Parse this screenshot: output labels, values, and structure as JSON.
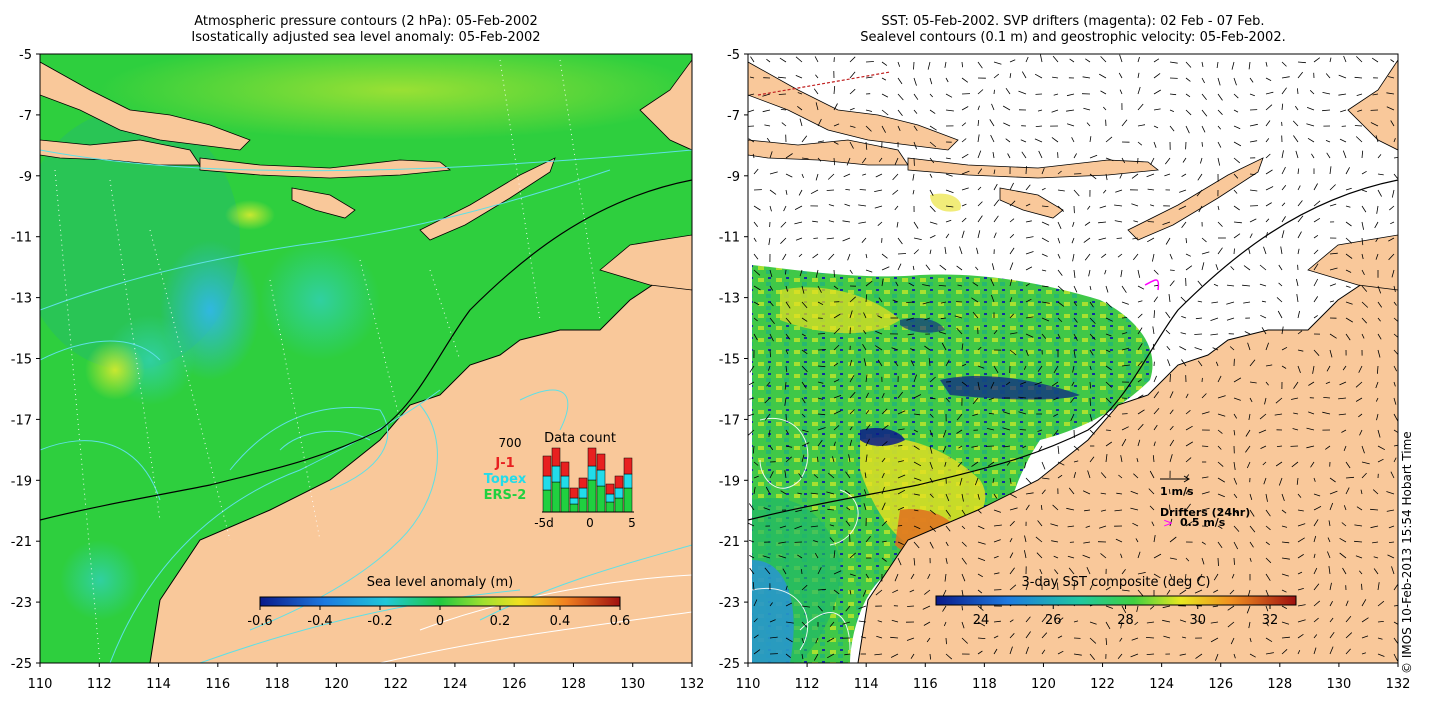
{
  "left_panel": {
    "title_line1": "Atmospheric pressure contours (2 hPa): 05-Feb-2002",
    "title_line2": "Isostatically adjusted sea level anomaly: 05-Feb-2002",
    "colorbar_label": "Sea level anomaly (m)",
    "colorbar_ticks": [
      "-0.6",
      "-0.4",
      "-0.2",
      "0",
      "0.2",
      "0.4",
      "0.6"
    ],
    "data_count": {
      "title": "Data count",
      "max_label": "700",
      "legend": [
        {
          "name": "J-1",
          "color": "#e82020"
        },
        {
          "name": "Topex",
          "color": "#22dcea"
        },
        {
          "name": "ERS-2",
          "color": "#20d040"
        }
      ],
      "x_ticks": [
        "-5d",
        "0",
        "5"
      ]
    }
  },
  "right_panel": {
    "title_line1": "SST: 05-Feb-2002. SVP drifters (magenta): 02 Feb - 07 Feb.",
    "title_line2": "Sealevel contours (0.1 m) and geostrophic velocity: 05-Feb-2002.",
    "colorbar_label": "3-day SST composite (deg C)",
    "colorbar_ticks": [
      "24",
      "26",
      "28",
      "30",
      "32"
    ],
    "velocity_scale": "1 m/s",
    "drifters_label": "Drifters (24hr)",
    "drifters_scale": "0.5 m/s"
  },
  "axes": {
    "lon_ticks": [
      "110",
      "112",
      "114",
      "116",
      "118",
      "120",
      "122",
      "124",
      "126",
      "128",
      "130",
      "132"
    ],
    "lat_ticks": [
      "-5",
      "-7",
      "-9",
      "-11",
      "-13",
      "-15",
      "-17",
      "-19",
      "-21",
      "-23",
      "-25"
    ]
  },
  "credit": "© IMOS 10-Feb-2013 15:54 Hobart Time",
  "colors": {
    "land": "#f9c89a",
    "ocean_sla": "#2ecf3e",
    "coast": "#000000",
    "contour_cyan": "#5fe0e6",
    "drifter": "#ff00ff"
  }
}
